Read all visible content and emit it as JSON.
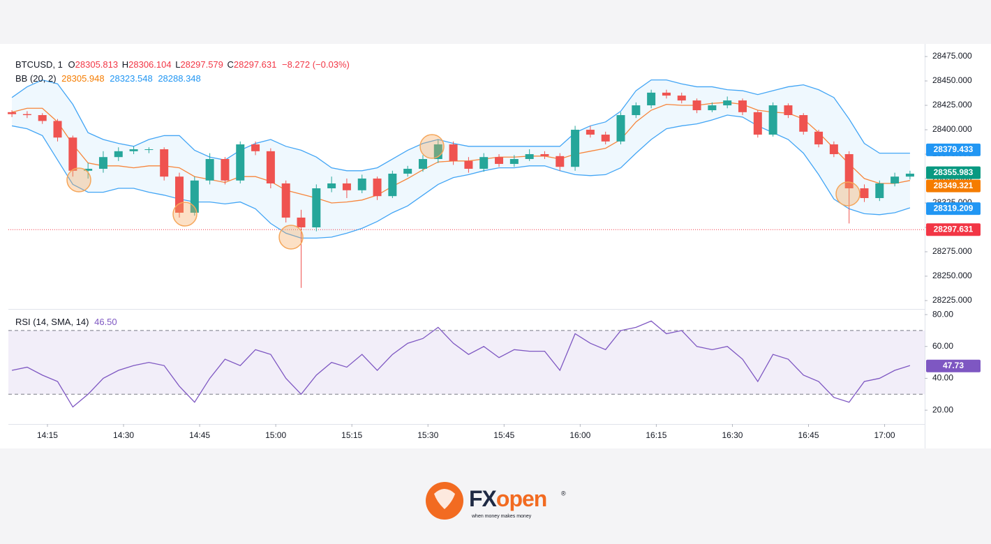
{
  "chart_data": [
    {
      "type": "candlestick",
      "header": {
        "symbol": "BTCUSD, 1",
        "o_label": "O",
        "open": "28305.813",
        "h_label": "H",
        "high": "28306.104",
        "l_label": "L",
        "low": "28297.579",
        "c_label": "C",
        "close": "28297.631",
        "change": "−8.272 (−0.03%)",
        "bb_label": "BB (20, 2)",
        "bb_mid": "28305.948",
        "bb_upper": "28323.548",
        "bb_lower": "28288.348"
      },
      "x": [
        848,
        851,
        854,
        857,
        860,
        863,
        866,
        869,
        872,
        875,
        878,
        881,
        884,
        887,
        890,
        893,
        896,
        899,
        902,
        905,
        908,
        911,
        914,
        917,
        920,
        923,
        926,
        929,
        932,
        935,
        938,
        941,
        944,
        947,
        950,
        953,
        956,
        959,
        962,
        965,
        968,
        971,
        974,
        977,
        980,
        983,
        986,
        989,
        992,
        995,
        998,
        1001,
        1004,
        1007,
        1010,
        1013,
        1016,
        1019,
        1022,
        1025
      ],
      "xlim": [
        847.3,
        1027.9
      ],
      "xticks": [
        {
          "value": 855,
          "label": "14:15"
        },
        {
          "value": 870,
          "label": "14:30"
        },
        {
          "value": 885,
          "label": "14:45"
        },
        {
          "value": 900,
          "label": "15:00"
        },
        {
          "value": 915,
          "label": "15:15"
        },
        {
          "value": 930,
          "label": "15:30"
        },
        {
          "value": 945,
          "label": "15:45"
        },
        {
          "value": 960,
          "label": "16:00"
        },
        {
          "value": 975,
          "label": "16:15"
        },
        {
          "value": 990,
          "label": "16:30"
        },
        {
          "value": 1005,
          "label": "16:45"
        },
        {
          "value": 1020,
          "label": "17:00"
        }
      ],
      "ylim": [
        28216.4,
        28487.9
      ],
      "yticks": [
        {
          "value": 28225,
          "label": "28225.000"
        },
        {
          "value": 28250,
          "label": "28250.000"
        },
        {
          "value": 28275,
          "label": "28275.000"
        },
        {
          "value": 28300,
          "label": "28300.000"
        },
        {
          "value": 28325,
          "label": "28325.000"
        },
        {
          "value": 28350,
          "label": "28350.000"
        },
        {
          "value": 28375,
          "label": "28375.000"
        },
        {
          "value": 28400,
          "label": "28400.000"
        },
        {
          "value": 28425,
          "label": "28425.000"
        },
        {
          "value": 28450,
          "label": "28450.000"
        },
        {
          "value": 28475,
          "label": "28475.000"
        }
      ],
      "up_color": "#26a69a",
      "down_color": "#ef5350",
      "open": [
        28418,
        28416,
        28415,
        28409,
        28392,
        28358,
        28360,
        28372,
        28378,
        28380,
        28380,
        28352,
        28315,
        28348,
        28370,
        28348,
        28385,
        28378,
        28345,
        28310,
        28300,
        28340,
        28345,
        28338,
        28350,
        28332,
        28355,
        28360,
        28370,
        28385,
        28368,
        28360,
        28372,
        28365,
        28370,
        28375,
        28373,
        28362,
        28400,
        28395,
        28388,
        28415,
        28425,
        28438,
        28435,
        28430,
        28420,
        28425,
        28430,
        28418,
        28395,
        28425,
        28415,
        28398,
        28385,
        28375,
        28340,
        28330,
        28345,
        28352
      ],
      "high": [
        28420,
        28419,
        28417,
        28411,
        28394,
        28366,
        28378,
        28382,
        28383,
        28382,
        28382,
        28356,
        28352,
        28376,
        28372,
        28388,
        28388,
        28381,
        28348,
        28318,
        28344,
        28352,
        28350,
        28354,
        28352,
        28358,
        28363,
        28374,
        28390,
        28388,
        28372,
        28376,
        28375,
        28374,
        28380,
        28378,
        28376,
        28404,
        28404,
        28398,
        28418,
        28428,
        28441,
        28441,
        28438,
        28432,
        28428,
        28434,
        28432,
        28420,
        28428,
        28427,
        28417,
        28400,
        28388,
        28378,
        28344,
        28348,
        28356,
        28358
      ],
      "low": [
        28413,
        28412,
        28406,
        28388,
        28352,
        28350,
        28356,
        28368,
        28375,
        28376,
        28348,
        28310,
        28312,
        28344,
        28344,
        28345,
        28374,
        28340,
        28305,
        28238,
        28296,
        28336,
        28330,
        28335,
        28328,
        28330,
        28352,
        28357,
        28366,
        28364,
        28356,
        28357,
        28362,
        28362,
        28368,
        28370,
        28358,
        28358,
        28392,
        28385,
        28385,
        28412,
        28422,
        28432,
        28427,
        28417,
        28418,
        28422,
        28415,
        28392,
        28393,
        28412,
        28395,
        28382,
        28372,
        28304,
        28326,
        28327,
        28342,
        28349
      ],
      "close": [
        28416,
        28415,
        28409,
        28392,
        28358,
        28360,
        28372,
        28378,
        28380,
        28380,
        28352,
        28315,
        28348,
        28370,
        28348,
        28385,
        28378,
        28345,
        28310,
        28300,
        28340,
        28345,
        28338,
        28350,
        28332,
        28355,
        28360,
        28370,
        28385,
        28368,
        28360,
        28372,
        28365,
        28370,
        28375,
        28373,
        28362,
        28400,
        28395,
        28388,
        28415,
        28425,
        28438,
        28435,
        28430,
        28420,
        28425,
        28430,
        28418,
        28395,
        28425,
        28415,
        28398,
        28385,
        28375,
        28340,
        28330,
        28345,
        28352,
        28355
      ],
      "series": [
        {
          "color": "#42a5f5",
          "values": [
            28433,
            28444,
            28451,
            28447,
            28426,
            28397,
            28390,
            28386,
            28383,
            28390,
            28394,
            28394,
            28379,
            28372,
            28369,
            28379,
            28386,
            28390,
            28383,
            28379,
            28372,
            28361,
            28358,
            28358,
            28361,
            28370,
            28379,
            28386,
            28390,
            28386,
            28383,
            28383,
            28383,
            28383,
            28383,
            28383,
            28383,
            28397,
            28404,
            28408,
            28419,
            28440,
            28451,
            28451,
            28447,
            28444,
            28444,
            28441,
            28440,
            28436,
            28440,
            28444,
            28446,
            28441,
            28433,
            28411,
            28386,
            28376,
            28376,
            28376
          ]
        },
        {
          "color": "#f7853b",
          "values": [
            28418,
            28422,
            28422,
            28408,
            28385,
            28366,
            28363,
            28363,
            28361,
            28363,
            28363,
            28361,
            28352,
            28349,
            28346,
            28352,
            28352,
            28347,
            28338,
            28334,
            28330,
            28325,
            28326,
            28328,
            28333,
            28342,
            28350,
            28359,
            28367,
            28368,
            28368,
            28370,
            28372,
            28372,
            28373,
            28373,
            28370,
            28375,
            28378,
            28381,
            28390,
            28408,
            28420,
            28426,
            28425,
            28425,
            28427,
            28428,
            28426,
            28420,
            28418,
            28417,
            28411,
            28397,
            28381,
            28365,
            28350,
            28345,
            28345,
            28348
          ]
        },
        {
          "color": "#42a5f5",
          "values": [
            28404,
            28401,
            28394,
            28369,
            28344,
            28336,
            28336,
            28340,
            28340,
            28336,
            28333,
            28329,
            28326,
            28326,
            28324,
            28326,
            28319,
            28304,
            28294,
            28289,
            28289,
            28290,
            28294,
            28299,
            28306,
            28315,
            28322,
            28333,
            28344,
            28351,
            28354,
            28358,
            28361,
            28361,
            28363,
            28363,
            28358,
            28354,
            28353,
            28354,
            28361,
            28376,
            28390,
            28401,
            28404,
            28406,
            28410,
            28415,
            28413,
            28404,
            28397,
            28390,
            28376,
            28354,
            28329,
            28319,
            28314,
            28313,
            28315,
            28320
          ]
        }
      ],
      "last_price_line": {
        "value": 28297.631,
        "color": "#f23645"
      },
      "price_labels": [
        {
          "value": 28379.433,
          "color": "#2196f3"
        },
        {
          "value": 28355.983,
          "color": "#089981"
        },
        {
          "value": 28349.321,
          "color": "#f57c00"
        },
        {
          "value": 28319.209,
          "color": "#2196f3"
        },
        {
          "value": 28297.631,
          "color": "#f23645"
        }
      ]
    },
    {
      "type": "line",
      "header": {
        "label": "RSI (14, SMA, 14)",
        "value": "46.50"
      },
      "ylim": [
        11.3,
        83.1
      ],
      "yticks": [
        {
          "value": 20,
          "label": "20.00"
        },
        {
          "value": 40,
          "label": "40.00"
        },
        {
          "value": 60,
          "label": "60.00"
        },
        {
          "value": 80,
          "label": "80.00"
        }
      ],
      "levels": [
        70,
        30
      ],
      "series": [
        {
          "color": "#7e57c2",
          "values": [
            45,
            47,
            42,
            38,
            22,
            30,
            40,
            45,
            48,
            50,
            48,
            35,
            25,
            40,
            52,
            48,
            58,
            55,
            40,
            30,
            42,
            50,
            47,
            55,
            45,
            55,
            62,
            65,
            72,
            62,
            55,
            60,
            53,
            58,
            57,
            57,
            45,
            68,
            62,
            58,
            70,
            72,
            76,
            68,
            70,
            60,
            58,
            60,
            52,
            38,
            55,
            52,
            42,
            38,
            28,
            25,
            38,
            40,
            45,
            48
          ]
        }
      ],
      "last_label": {
        "value": 47.73,
        "color": "#7e57c2"
      }
    }
  ],
  "logo": {
    "mark_a": "FX",
    "mark_b": "open",
    "registered": "®",
    "tagline": "when money makes money"
  }
}
